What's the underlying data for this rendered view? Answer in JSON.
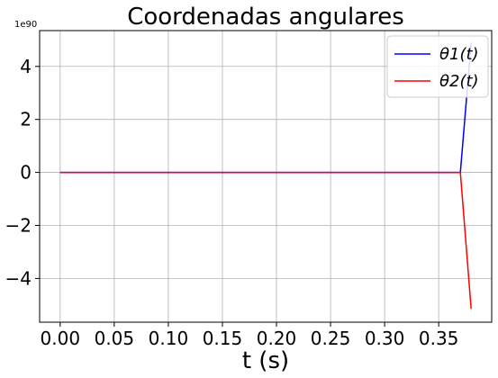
{
  "chart_data": {
    "type": "line",
    "title": "Coordenadas angulares",
    "xlabel": "t (s)",
    "ylabel": "",
    "y_scale_label": "1e90",
    "xlim": [
      -0.019,
      0.399
    ],
    "ylim": [
      -5.65,
      5.35
    ],
    "x_ticks": [
      0.0,
      0.05,
      0.1,
      0.15,
      0.2,
      0.25,
      0.3,
      0.35
    ],
    "x_tick_labels": [
      "0.00",
      "0.05",
      "0.10",
      "0.15",
      "0.20",
      "0.25",
      "0.30",
      "0.35"
    ],
    "y_ticks": [
      -4,
      -2,
      0,
      2,
      4
    ],
    "y_tick_labels": [
      "−4",
      "−2",
      "0",
      "2",
      "4"
    ],
    "grid": true,
    "legend_position": "top-right",
    "legend_entries": [
      "θ1(t)",
      "θ2(t)"
    ],
    "series": [
      {
        "name": "θ1(t)",
        "color": "#0000ff",
        "points": [
          [
            0.0,
            0.0
          ],
          [
            0.37,
            0.0
          ],
          [
            0.38,
            4.9
          ]
        ]
      },
      {
        "name": "θ2(t)",
        "color": "#ff0000",
        "points": [
          [
            0.0,
            0.0
          ],
          [
            0.37,
            0.0
          ],
          [
            0.38,
            -5.15
          ]
        ]
      }
    ]
  }
}
